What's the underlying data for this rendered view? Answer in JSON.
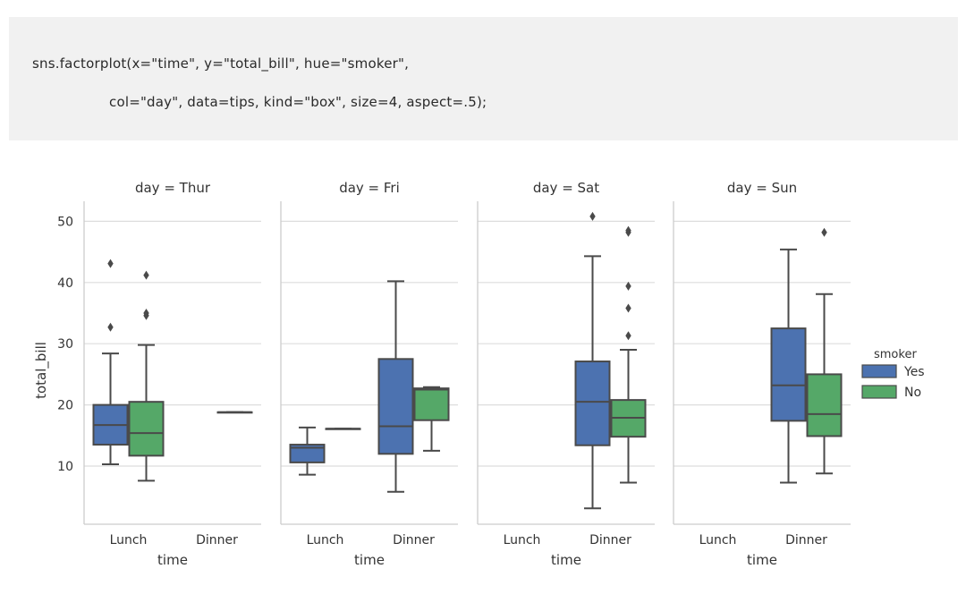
{
  "code": {
    "line1": "sns.factorplot(x=\"time\", y=\"total_bill\", hue=\"smoker\",",
    "line2": "col=\"day\", data=tips, kind=\"box\", size=4, aspect=.5);"
  },
  "chart_data": {
    "type": "box",
    "ylabel": "total_bill",
    "xlabel": "time",
    "categories": [
      "Lunch",
      "Dinner"
    ],
    "yticks": [
      10,
      20,
      30,
      40,
      50
    ],
    "ylim": [
      0,
      53.5
    ],
    "grid": true,
    "legend": {
      "title": "smoker",
      "placement": "right",
      "items": [
        {
          "name": "Yes",
          "color": "#4c72b0"
        },
        {
          "name": "No",
          "color": "#55a868"
        }
      ]
    },
    "panels": [
      {
        "title": "day = Thur",
        "boxes": [
          {
            "time": "Lunch",
            "smoker": "Yes",
            "q1": 13.5,
            "median": 16.7,
            "q3": 20.0,
            "whislo": 10.3,
            "whishi": 28.4,
            "fliers": [
              32.7,
              43.1
            ]
          },
          {
            "time": "Lunch",
            "smoker": "No",
            "q1": 11.7,
            "median": 15.4,
            "q3": 20.5,
            "whislo": 7.6,
            "whishi": 29.8,
            "fliers": [
              34.6,
              35.0,
              41.2
            ]
          },
          {
            "time": "Dinner",
            "smoker": "No",
            "q1": 18.8,
            "median": 18.8,
            "q3": 18.8,
            "whislo": 18.8,
            "whishi": 18.8,
            "fliers": []
          }
        ]
      },
      {
        "title": "day = Fri",
        "boxes": [
          {
            "time": "Lunch",
            "smoker": "Yes",
            "q1": 10.6,
            "median": 13.0,
            "q3": 13.5,
            "whislo": 8.6,
            "whishi": 16.3,
            "fliers": []
          },
          {
            "time": "Lunch",
            "smoker": "No",
            "q1": 16.1,
            "median": 16.1,
            "q3": 16.1,
            "whislo": 16.1,
            "whishi": 16.1,
            "fliers": []
          },
          {
            "time": "Dinner",
            "smoker": "Yes",
            "q1": 12.0,
            "median": 16.5,
            "q3": 27.5,
            "whislo": 5.8,
            "whishi": 40.2,
            "fliers": []
          },
          {
            "time": "Dinner",
            "smoker": "No",
            "q1": 17.5,
            "median": 22.5,
            "q3": 22.7,
            "whislo": 12.5,
            "whishi": 22.9,
            "fliers": []
          }
        ]
      },
      {
        "title": "day = Sat",
        "boxes": [
          {
            "time": "Dinner",
            "smoker": "Yes",
            "q1": 13.4,
            "median": 20.5,
            "q3": 27.1,
            "whislo": 3.1,
            "whishi": 44.3,
            "fliers": [
              50.8
            ]
          },
          {
            "time": "Dinner",
            "smoker": "No",
            "q1": 14.8,
            "median": 17.9,
            "q3": 20.8,
            "whislo": 7.3,
            "whishi": 29.0,
            "fliers": [
              31.3,
              35.8,
              39.4,
              48.2,
              48.5
            ]
          }
        ]
      },
      {
        "title": "day = Sun",
        "boxes": [
          {
            "time": "Dinner",
            "smoker": "Yes",
            "q1": 17.4,
            "median": 23.2,
            "q3": 32.5,
            "whislo": 7.3,
            "whishi": 45.4,
            "fliers": []
          },
          {
            "time": "Dinner",
            "smoker": "No",
            "q1": 14.9,
            "median": 18.5,
            "q3": 25.0,
            "whislo": 8.8,
            "whishi": 38.1,
            "fliers": [
              48.2
            ]
          }
        ]
      }
    ]
  }
}
